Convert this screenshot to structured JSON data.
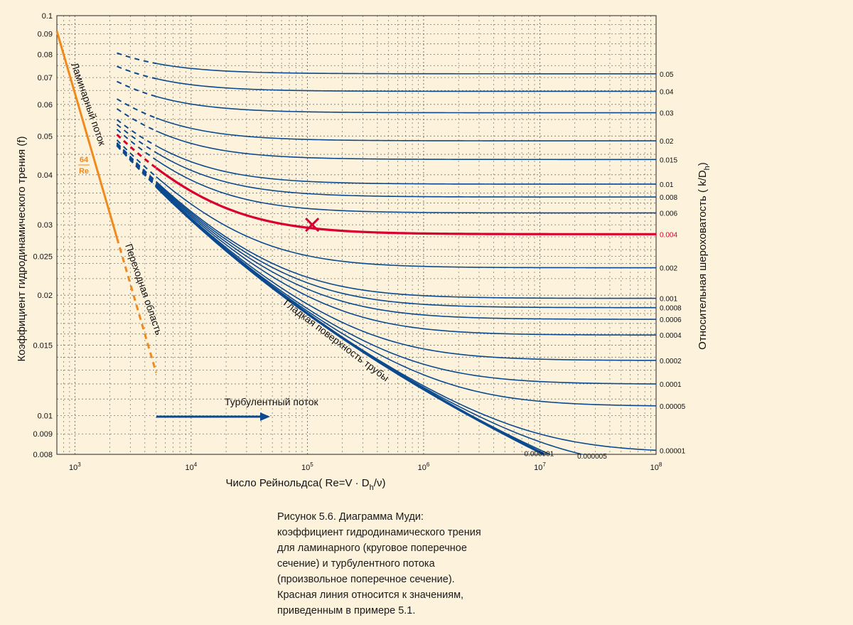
{
  "chart_data": {
    "type": "line",
    "title": "Диаграмма Муди",
    "xlabel": "Число Рейнольдса( Re=V · D_h/ν)",
    "ylabel": "Коэффициент гидродинамического трения (f)",
    "y2label": "Относительная шероховатость ( k/D_h)",
    "xscale": "log",
    "yscale": "log",
    "xlim": [
      700,
      100000000
    ],
    "ylim": [
      0.008,
      0.1
    ],
    "grid": true,
    "x_ticks": [
      {
        "value": 1000,
        "base": "10",
        "exp": "3"
      },
      {
        "value": 10000,
        "base": "10",
        "exp": "4"
      },
      {
        "value": 100000,
        "base": "10",
        "exp": "5"
      },
      {
        "value": 1000000,
        "base": "10",
        "exp": "6"
      },
      {
        "value": 10000000,
        "base": "10",
        "exp": "7"
      },
      {
        "value": 100000000,
        "base": "10",
        "exp": "8"
      }
    ],
    "y_ticks": [
      {
        "value": 0.1,
        "label": "0.1"
      },
      {
        "value": 0.09,
        "label": "0.09"
      },
      {
        "value": 0.08,
        "label": "0.08"
      },
      {
        "value": 0.07,
        "label": "0.07"
      },
      {
        "value": 0.06,
        "label": "0.06"
      },
      {
        "value": 0.05,
        "label": "0.05"
      },
      {
        "value": 0.04,
        "label": "0.04"
      },
      {
        "value": 0.03,
        "label": "0.03"
      },
      {
        "value": 0.025,
        "label": "0.025"
      },
      {
        "value": 0.02,
        "label": "0.02"
      },
      {
        "value": 0.015,
        "label": "0.015"
      },
      {
        "value": 0.01,
        "label": "0.01"
      },
      {
        "value": 0.009,
        "label": "0.009"
      },
      {
        "value": 0.008,
        "label": "0.008"
      }
    ],
    "roughness_series": [
      {
        "label": "0.05",
        "value": 0.05,
        "color": "#0b4a8f"
      },
      {
        "label": "0.04",
        "value": 0.04,
        "color": "#0b4a8f"
      },
      {
        "label": "0.03",
        "value": 0.03,
        "color": "#0b4a8f"
      },
      {
        "label": "0.02",
        "value": 0.02,
        "color": "#0b4a8f"
      },
      {
        "label": "0.015",
        "value": 0.015,
        "color": "#0b4a8f"
      },
      {
        "label": "0.01",
        "value": 0.01,
        "color": "#0b4a8f"
      },
      {
        "label": "0.008",
        "value": 0.008,
        "color": "#0b4a8f"
      },
      {
        "label": "0.006",
        "value": 0.006,
        "color": "#0b4a8f"
      },
      {
        "label": "0.004",
        "value": 0.004,
        "color": "#d7002f",
        "highlight": true
      },
      {
        "label": "0.002",
        "value": 0.002,
        "color": "#0b4a8f"
      },
      {
        "label": "0.001",
        "value": 0.001,
        "color": "#0b4a8f"
      },
      {
        "label": "0.0008",
        "value": 0.0008,
        "color": "#0b4a8f"
      },
      {
        "label": "0.0006",
        "value": 0.0006,
        "color": "#0b4a8f"
      },
      {
        "label": "0.0004",
        "value": 0.0004,
        "color": "#0b4a8f"
      },
      {
        "label": "0.0002",
        "value": 0.0002,
        "color": "#0b4a8f"
      },
      {
        "label": "0.0001",
        "value": 0.0001,
        "color": "#0b4a8f"
      },
      {
        "label": "0.00005",
        "value": 5e-05,
        "color": "#0b4a8f"
      },
      {
        "label": "0.00001",
        "value": 1e-05,
        "color": "#0b4a8f"
      }
    ],
    "inner_series": [
      {
        "label": "0.000001",
        "value": 1e-06
      },
      {
        "label": "0.000005",
        "value": 5e-06
      }
    ],
    "laminar": {
      "formula_num": "64",
      "formula_den": "Re",
      "re_start": 700,
      "re_end": 2300,
      "color": "#f08a1c"
    },
    "transition_end_re": 5000,
    "example_point": {
      "re": 110000,
      "f": 0.03,
      "marker": "x"
    },
    "annotations": {
      "laminar": "Ламинарный поток",
      "transition": "Переходная область",
      "smooth": "Гладкая поверхность трубы",
      "turbulent": "Турбулентный поток"
    }
  },
  "caption": [
    "Рисунок 5.6. Диаграмма Муди:",
    "коэффициент гидродинамического трения",
    "для ламинарного (круговое поперечное",
    "сечение) и турбулентного потока",
    "(произвольное поперечное сечение).",
    "Красная линия относится к значениям,",
    "приведенным в примере 5.1."
  ],
  "colors": {
    "series": "#0b4a8f",
    "highlight": "#d7002f",
    "laminar": "#f08a1c",
    "background": "#fdf2dc"
  }
}
